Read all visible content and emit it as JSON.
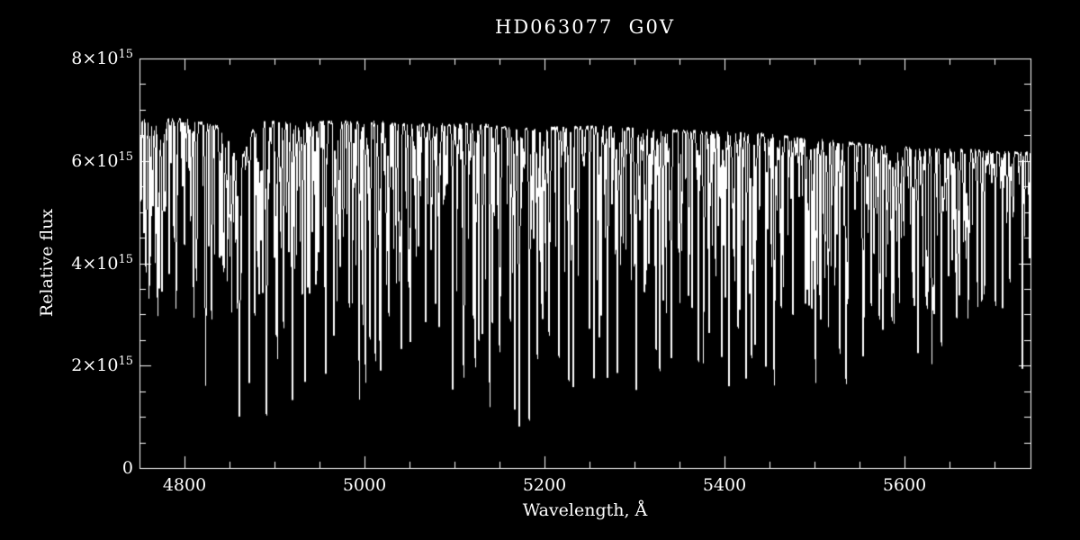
{
  "chart_data": {
    "type": "line",
    "title": "HD063077  G0V",
    "xlabel": "Wavelength, Å",
    "ylabel": "Relative flux",
    "xlim": [
      4750,
      5740
    ],
    "ylim": [
      0,
      8000000000000000.0
    ],
    "flux_unit": 1000000000000000.0,
    "grid": false,
    "legend": "none",
    "frame": "full-box",
    "xticks": [
      {
        "v": 4800,
        "label": "4800"
      },
      {
        "v": 5000,
        "label": "5000"
      },
      {
        "v": 5200,
        "label": "5200"
      },
      {
        "v": 5400,
        "label": "5400"
      },
      {
        "v": 5600,
        "label": "5600"
      }
    ],
    "yticks": [
      {
        "v": 0,
        "base": "0",
        "exp": ""
      },
      {
        "v": 2000000000000000.0,
        "base": "2×10",
        "exp": "15"
      },
      {
        "v": 4000000000000000.0,
        "base": "4×10",
        "exp": "15"
      },
      {
        "v": 6000000000000000.0,
        "base": "6×10",
        "exp": "15"
      },
      {
        "v": 8000000000000000.0,
        "base": "8×10",
        "exp": "15"
      }
    ],
    "x_minor_step": 50,
    "y_minor_step": 500000000000000.0,
    "continuum_points": [
      [
        4750,
        6.82
      ],
      [
        4800,
        6.8
      ],
      [
        4845,
        6.65
      ],
      [
        4875,
        6.75
      ],
      [
        4950,
        6.75
      ],
      [
        5000,
        6.76
      ],
      [
        5060,
        6.7
      ],
      [
        5120,
        6.72
      ],
      [
        5165,
        6.62
      ],
      [
        5200,
        6.63
      ],
      [
        5260,
        6.66
      ],
      [
        5320,
        6.6
      ],
      [
        5380,
        6.56
      ],
      [
        5440,
        6.52
      ],
      [
        5500,
        6.42
      ],
      [
        5560,
        6.3
      ],
      [
        5620,
        6.22
      ],
      [
        5680,
        6.2
      ],
      [
        5740,
        6.14
      ]
    ],
    "hbeta_wing": {
      "center": 4861,
      "depth": 0.1,
      "sigma": 9
    },
    "major_lines": [
      [
        4757,
        4.5
      ],
      [
        4765,
        5.0
      ],
      [
        4772,
        4.3
      ],
      [
        4779,
        5.2
      ],
      [
        4790,
        4.6
      ],
      [
        4800,
        4.2
      ],
      [
        4810,
        4.8
      ],
      [
        4824,
        3.3
      ],
      [
        4830,
        4.7
      ],
      [
        4839,
        4.0
      ],
      [
        4861,
        1.15,
        0.8
      ],
      [
        4872,
        2.4
      ],
      [
        4878,
        2.9
      ],
      [
        4891,
        1.5
      ],
      [
        4903,
        2.3
      ],
      [
        4910,
        3.3
      ],
      [
        4920,
        1.45
      ],
      [
        4934,
        2.0
      ],
      [
        4939,
        3.2
      ],
      [
        4946,
        3.5
      ],
      [
        4957,
        1.5
      ],
      [
        4966,
        2.9
      ],
      [
        4973,
        3.8
      ],
      [
        4983,
        3.1
      ],
      [
        4994,
        2.8
      ],
      [
        5001,
        2.2
      ],
      [
        5006,
        2.5
      ],
      [
        5012,
        2.0
      ],
      [
        5018,
        1.6
      ],
      [
        5027,
        3.3
      ],
      [
        5041,
        2.1
      ],
      [
        5051,
        2.2
      ],
      [
        5060,
        4.2
      ],
      [
        5068,
        2.8
      ],
      [
        5079,
        3.0
      ],
      [
        5083,
        2.7
      ],
      [
        5098,
        2.4
      ],
      [
        5110,
        1.9
      ],
      [
        5123,
        2.5
      ],
      [
        5127,
        2.2
      ],
      [
        5131,
        3.8
      ],
      [
        5139,
        2.0
      ],
      [
        5142,
        2.6
      ],
      [
        5150,
        2.3
      ],
      [
        5162,
        2.7
      ],
      [
        5167,
        1.0,
        0.5
      ],
      [
        5172,
        0.85,
        0.55
      ],
      [
        5183,
        0.8,
        0.6
      ],
      [
        5192,
        2.0
      ],
      [
        5198,
        2.7
      ],
      [
        5205,
        2.4
      ],
      [
        5216,
        2.0
      ],
      [
        5227,
        1.5
      ],
      [
        5232,
        2.2
      ],
      [
        5250,
        2.5
      ],
      [
        5255,
        2.6
      ],
      [
        5263,
        2.8
      ],
      [
        5270,
        1.45
      ],
      [
        5281,
        2.4
      ],
      [
        5302,
        2.6
      ],
      [
        5324,
        2.0
      ],
      [
        5328,
        1.7
      ],
      [
        5341,
        2.3
      ],
      [
        5364,
        2.9
      ],
      [
        5371,
        1.8
      ],
      [
        5383,
        2.4
      ],
      [
        5397,
        2.0
      ],
      [
        5405,
        1.9
      ],
      [
        5415,
        2.5
      ],
      [
        5424,
        2.6
      ],
      [
        5430,
        2.0
      ],
      [
        5434,
        2.3
      ],
      [
        5446,
        2.4
      ],
      [
        5455,
        2.2
      ],
      [
        5463,
        3.0
      ],
      [
        5476,
        2.8
      ],
      [
        5497,
        2.9
      ],
      [
        5501,
        2.8
      ],
      [
        5507,
        2.7
      ],
      [
        5528,
        2.2
      ],
      [
        5535,
        2.8
      ],
      [
        5554,
        3.1
      ],
      [
        5563,
        3.0
      ],
      [
        5572,
        2.8
      ],
      [
        5576,
        2.5
      ],
      [
        5586,
        2.8
      ],
      [
        5615,
        2.6
      ],
      [
        5624,
        3.2
      ],
      [
        5633,
        3.6
      ],
      [
        5641,
        3.3
      ],
      [
        5658,
        3.0
      ],
      [
        5686,
        3.6
      ],
      [
        5701,
        3.4
      ],
      [
        5709,
        3.0
      ],
      [
        5717,
        3.5
      ],
      [
        5731,
        3.2
      ]
    ],
    "line_forest": {
      "count": 800,
      "seed": 12345,
      "max_depth": 0.5,
      "min_sigma": 0.12,
      "max_sigma": 0.5
    },
    "noise_amplitude": 0.04,
    "colors": {
      "background": "#000000",
      "foreground": "#ffffff"
    }
  }
}
